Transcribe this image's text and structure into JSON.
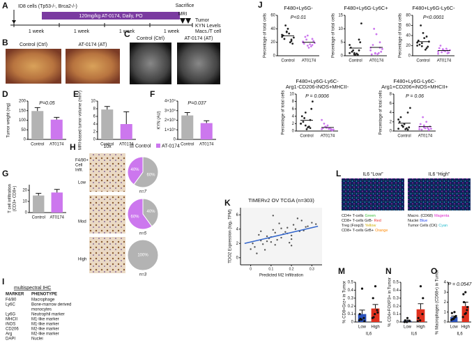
{
  "panels": {
    "A": {
      "letter": "A",
      "cells": "ID8 cells (Tp53-/-, Brca2-/-)",
      "treatment": "120mg/kg AT-0174, Daily, PO",
      "sacrifice": "Sacrifice",
      "mri": "MRI",
      "readout": [
        "Tumor",
        "KYN Levels",
        "Macs./T cell"
      ],
      "weeks": [
        "1 week",
        "1 week",
        "1 week",
        "1 week"
      ]
    },
    "B": {
      "letter": "B",
      "captions": [
        "Control (Ctrl)",
        "AT-0174 (AT)"
      ]
    },
    "C": {
      "letter": "C",
      "captions": [
        "Control (Ctrl)",
        "AT-0174 (AT)"
      ]
    },
    "H": {
      "letter": "H",
      "magnification": "10x",
      "legend": [
        {
          "name": "Control",
          "color": "#b3b3b3"
        },
        {
          "name": "AT-0174",
          "color": "#cc77ee"
        }
      ],
      "row_title": [
        "F4/80+",
        "Cell",
        "Infil."
      ],
      "rows": [
        "Low",
        "Mod",
        "High"
      ]
    },
    "I": {
      "letter": "I",
      "title": "multispectral IHC",
      "columns": [
        "MARKER",
        "PHENOTYPE"
      ],
      "rows": [
        {
          "marker": "F4/80",
          "phenotype": [
            "Macrophage"
          ]
        },
        {
          "marker": "Ly6C",
          "phenotype": [
            "Bone-marrow derived",
            "monocytes"
          ]
        },
        {
          "marker": "Ly6G",
          "phenotype": [
            "Neutrophil marker"
          ]
        },
        {
          "marker": "MHCII",
          "phenotype": [
            "M1-like marker"
          ]
        },
        {
          "marker": "iNOS",
          "phenotype": [
            "M1-like marker"
          ]
        },
        {
          "marker": "CD206",
          "phenotype": [
            "M2-like marker"
          ]
        },
        {
          "marker": "Arg",
          "phenotype": [
            "M2-like marker"
          ]
        },
        {
          "marker": "DAPI",
          "phenotype": [
            "Nuclei"
          ]
        }
      ]
    },
    "J": {
      "letter": "J"
    },
    "L": {
      "letter": "L",
      "titles": [
        "IL6 “Low”",
        "IL6 “High”"
      ],
      "legend_left": [
        {
          "label": "CD4+ T-cells",
          "color_name": "Green",
          "color": "#33bb33"
        },
        {
          "label": "CD8+ T-cells GrB-",
          "color_name": "Red",
          "color": "#ee3333"
        },
        {
          "label": "Treg (Foxp3)",
          "color_name": "Yellow",
          "color": "#ccaa00"
        },
        {
          "label": "CD8+ T-cells GrB+",
          "color_name": "Orange",
          "color": "#ff8800"
        }
      ],
      "legend_right": [
        {
          "label": "Macro. (CD68)",
          "color_name": "Magenta",
          "color": "#dd22cc"
        },
        {
          "label": "Nuclei",
          "color_name": "Blue",
          "color": "#2244ee"
        },
        {
          "label": "Tumor Cells (CK)",
          "color_name": "Cyan",
          "color": "#22bbcc"
        }
      ]
    }
  },
  "chart_data": [
    {
      "type": "bar",
      "panel": "D",
      "ylabel": "Tumor weight (mg)",
      "categories": [
        "Control",
        "AT0174"
      ],
      "values": [
        148,
        103
      ],
      "errors": [
        18,
        12
      ],
      "colors": [
        "#b3b3b3",
        "#cc77ee"
      ],
      "ylim": [
        0,
        200
      ],
      "yticks": [
        0,
        50,
        100,
        150,
        200
      ],
      "annotation": "P=0.05"
    },
    {
      "type": "bar",
      "panel": "E",
      "ylabel": "MRI-based tumor volume (mm³)",
      "categories": [
        "Control",
        "AT0174"
      ],
      "values": [
        7.8,
        4.0
      ],
      "errors": [
        0.8,
        3.2
      ],
      "colors": [
        "#b3b3b3",
        "#cc77ee"
      ],
      "ylim": [
        0,
        10
      ],
      "yticks": [
        0,
        2,
        4,
        6,
        8,
        10
      ]
    },
    {
      "type": "bar",
      "panel": "F",
      "ylabel": "KYN (AU)",
      "categories": [
        "Control",
        "AT0174"
      ],
      "values": [
        250000,
        170000
      ],
      "errors": [
        30000,
        25000
      ],
      "colors": [
        "#b3b3b3",
        "#cc77ee"
      ],
      "ylim": [
        0,
        400000
      ],
      "yticks": [
        0,
        {
          "value": 100000,
          "label": "1×10⁵"
        },
        {
          "value": 200000,
          "label": "2×10⁵"
        },
        {
          "value": 300000,
          "label": "3×10⁵"
        },
        {
          "value": 400000,
          "label": "4×10⁵"
        }
      ],
      "annotation": "P=0.037"
    },
    {
      "type": "bar",
      "panel": "G",
      "ylabel": [
        "T cell infiltration",
        "(CD3+ CD8+)"
      ],
      "categories": [
        "Control",
        "AT0174"
      ],
      "values": [
        15.3,
        18
      ],
      "errors": [
        2,
        2.8
      ],
      "colors": [
        "#b3b3b3",
        "#cc77ee"
      ],
      "ylim": [
        0,
        25
      ],
      "yticks": [
        0,
        10,
        20
      ]
    },
    {
      "type": "dot",
      "title": [
        "F480+Ly6G-"
      ],
      "ylabel": "Percentage of total cells",
      "categories": [
        "Control",
        "AT0174"
      ],
      "colors": [
        "#222222",
        "#cc77ee"
      ],
      "groups": [
        [
          28,
          35,
          22,
          30,
          40,
          18,
          25,
          33,
          27,
          45,
          20,
          31,
          36,
          24
        ],
        [
          20,
          15,
          25,
          18,
          12,
          22,
          28,
          17,
          19,
          24,
          14,
          21,
          30,
          16
        ]
      ],
      "means": [
        29.6,
        20.1
      ],
      "ylim": [
        0,
        60
      ],
      "yticks": [
        0,
        20,
        40,
        60
      ],
      "annotation": "P<0.01"
    },
    {
      "type": "dot",
      "title": [
        "F480+Ly6G-Ly6C+"
      ],
      "ylabel": "Percentage of total cells",
      "categories": [
        "Control",
        "AT0174"
      ],
      "colors": [
        "#222222",
        "#cc77ee"
      ],
      "groups": [
        [
          1,
          0.5,
          2,
          3,
          0.3,
          5,
          1.5,
          0.8,
          12,
          2,
          0.4,
          4,
          1,
          6
        ],
        [
          2,
          1,
          3,
          0.5,
          8,
          1.5,
          4,
          0.6,
          2.5,
          10,
          1,
          3,
          0.8,
          5
        ]
      ],
      "means": [
        2.85,
        3.1
      ],
      "ylim": [
        0,
        15
      ],
      "yticks": [
        0,
        5,
        10,
        15
      ]
    },
    {
      "type": "dot",
      "title": [
        "F480+Ly6G-Ly6C-"
      ],
      "ylabel": "Percentage of total cells",
      "categories": [
        "Control",
        "AT0174"
      ],
      "colors": [
        "#222222",
        "#cc77ee"
      ],
      "groups": [
        [
          20,
          25,
          15,
          30,
          45,
          18,
          22,
          35,
          28,
          60,
          12,
          26,
          19,
          38
        ],
        [
          8,
          12,
          5,
          15,
          10,
          6,
          20,
          9,
          11,
          7,
          14,
          4,
          13,
          10
        ]
      ],
      "means": [
        28,
        10.3
      ],
      "ylim": [
        0,
        80
      ],
      "yticks": [
        0,
        20,
        40,
        60,
        80
      ],
      "annotation": "P<0.0001"
    },
    {
      "type": "dot",
      "title": [
        "F480+Ly6G-Ly6C-",
        "Arg1-CD206-iNOS+MHCII-"
      ],
      "ylabel": "Percentage of total cells",
      "categories": [
        "Control",
        "AT0174"
      ],
      "colors": [
        "#222222",
        "#cc77ee"
      ],
      "groups": [
        [
          2,
          1.5,
          3,
          4,
          0.5,
          6,
          2.5,
          1,
          8,
          3.5,
          1.2,
          2,
          5,
          0.8
        ],
        [
          0.5,
          1,
          0.3,
          0.8,
          1.5,
          0.2,
          2,
          0.6,
          0.4,
          1.2,
          0.7,
          3,
          0.9,
          0.5
        ]
      ],
      "means": [
        2.9,
        0.97
      ],
      "ylim": [
        0,
        10
      ],
      "yticks": [
        0,
        2,
        4,
        6,
        8,
        10
      ],
      "annotation": "P = 0.0006"
    },
    {
      "type": "dot",
      "title": [
        "F480+Ly6G-Ly6C-",
        "Arg1+CD206+iNOS+MHCII+"
      ],
      "ylabel": "Percentage of total cells",
      "categories": [
        "Control",
        "AT0174"
      ],
      "colors": [
        "#222222",
        "#cc77ee"
      ],
      "groups": [
        [
          0.5,
          1,
          0.3,
          2,
          1.5,
          0.8,
          3,
          0.4,
          5,
          1.2,
          0.6,
          2.5,
          0.9,
          4
        ],
        [
          0.4,
          0.8,
          0.2,
          1.5,
          0.6,
          1,
          0.3,
          2,
          0.5,
          3,
          0.7,
          0.9,
          1.2,
          0.4
        ]
      ],
      "means": [
        1.7,
        0.96
      ],
      "ylim": [
        0,
        8
      ],
      "yticks": [
        0,
        2,
        4,
        6,
        8
      ],
      "annotation": "P = 0.06"
    },
    {
      "type": "scatter",
      "panel": "K",
      "title": [
        "TIMERv2 OV TCGA (n=303)"
      ],
      "ylabel": [
        "TDO2 Expression (log₂ TPM)"
      ],
      "xlabel": "Predicted M2 Infiltration",
      "color": "#555555",
      "fit_color": "#3366cc",
      "x": [
        0.02,
        0.05,
        0.08,
        0.1,
        0.12,
        0.15,
        0.18,
        0.2,
        0.22,
        0.25,
        0.03,
        0.06,
        0.09,
        0.11,
        0.13,
        0.16,
        0.19,
        0.21,
        0.24,
        0.28,
        0.01,
        0.04,
        0.07,
        0.1,
        0.14,
        0.17,
        0.2,
        0.23,
        0.26,
        0.3,
        0.0,
        0.05,
        0.12,
        0.15,
        0.18,
        0.08,
        0.11,
        0.2,
        0.27,
        0.32
      ],
      "values": [
        1.5,
        2.4,
        3.0,
        2.2,
        3.5,
        2.8,
        4.2,
        3.1,
        4.0,
        5.2,
        0.6,
        1.9,
        2.7,
        3.9,
        2.5,
        3.3,
        2.1,
        4.6,
        3.7,
        4.4,
        2.0,
        3.2,
        1.1,
        2.9,
        4.8,
        3.6,
        2.6,
        5.5,
        3.8,
        4.9,
        1.2,
        3.7,
        1.8,
        4.1,
        3.4,
        2.3,
        5.9,
        1.7,
        4.3,
        4.7
      ],
      "fit": {
        "x": [
          -0.03,
          0.33
        ],
        "y": [
          2.0,
          4.4
        ]
      },
      "xlim": [
        -0.05,
        0.35
      ],
      "xticks": [
        0,
        0.1,
        0.2,
        0.3
      ],
      "ylim": [
        -1,
        7
      ],
      "yticks": [
        0,
        2,
        4,
        6
      ]
    },
    {
      "type": "bar",
      "panel": "M",
      "ylabel": "% CD8+Grz+ in Tumor",
      "xlabel": "IL6",
      "categories": [
        "Low",
        "High"
      ],
      "values": [
        0.1,
        0.17
      ],
      "errors": [
        0.05,
        0.05
      ],
      "colors": [
        "#2a52be",
        "#e0301e"
      ],
      "points": [
        [
          0.02,
          0.03,
          0.05,
          0.1,
          0.42,
          0.01,
          0.04
        ],
        [
          0.05,
          0.1,
          0.15,
          0.3,
          0.45,
          0.12,
          0.06
        ]
      ],
      "ylim": [
        0,
        0.5
      ],
      "yticks": [
        0,
        0.1,
        0.2,
        0.3,
        0.4,
        0.5
      ]
    },
    {
      "type": "bar",
      "panel": "N",
      "ylabel": "% CD4+FOXP3+ in Tumor",
      "xlabel": "IL6",
      "categories": [
        "Low",
        "High"
      ],
      "values": [
        0.015,
        0.16
      ],
      "errors": [
        0.01,
        0.07
      ],
      "colors": [
        "#2a52be",
        "#e0301e"
      ],
      "points": [
        [
          0,
          0,
          0.01,
          0.02,
          0.05,
          0.01
        ],
        [
          0.01,
          0.02,
          0.1,
          0.05,
          0.45,
          0.3
        ]
      ],
      "ylim": [
        0,
        0.5
      ],
      "yticks": [
        0,
        0.1,
        0.2,
        0.3,
        0.4,
        0.5
      ]
    },
    {
      "type": "bar",
      "panel": "O",
      "ylabel": "% Macrophages (CD68+) in Tumor",
      "xlabel": "IL6",
      "categories": [
        "Low",
        "High"
      ],
      "values": [
        0.5,
        1.6
      ],
      "errors": [
        0.1,
        0.4
      ],
      "colors": [
        "#2a52be",
        "#e0301e"
      ],
      "points": [
        [
          0.2,
          0.3,
          0.5,
          0.9,
          0.4,
          0.6,
          0.3,
          1.0
        ],
        [
          0.5,
          0.8,
          1.2,
          2.8,
          3.0,
          1.5,
          2.0,
          0.9
        ]
      ],
      "ylim": [
        0,
        4
      ],
      "yticks": [
        0,
        1,
        2,
        3,
        4
      ],
      "annotation": "P = 0.0547"
    },
    {
      "type": "pie",
      "values": [
        40,
        60
      ],
      "value_labels": [
        "40%",
        "60%"
      ],
      "colors": [
        "#cc77ee",
        "#b3b3b3"
      ],
      "note": "n=7"
    },
    {
      "type": "pie",
      "values": [
        60,
        40
      ],
      "value_labels": [
        "60%",
        "40%"
      ],
      "colors": [
        "#cc77ee",
        "#b3b3b3"
      ],
      "note": "n=5"
    },
    {
      "type": "pie",
      "values": [
        100
      ],
      "value_labels": [
        "100%"
      ],
      "colors": [
        "#b3b3b3"
      ],
      "note": "n=3"
    }
  ]
}
